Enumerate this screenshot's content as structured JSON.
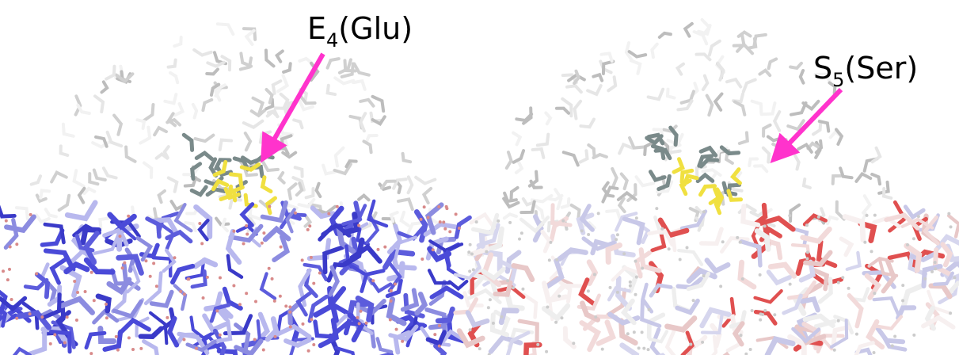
{
  "panels": [
    {
      "label": {
        "element": "E",
        "subscript": "4",
        "residue": "(Glu)"
      }
    },
    {
      "label": {
        "element": "S",
        "subscript": "5",
        "residue": "(Ser)"
      }
    }
  ]
}
